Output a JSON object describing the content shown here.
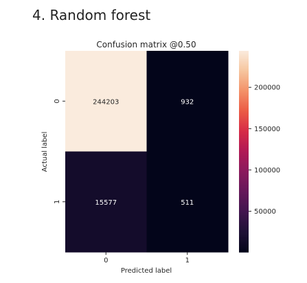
{
  "page": {
    "section_heading": "4. Random forest"
  },
  "chart_data": {
    "type": "heatmap",
    "title": "Confusion matrix @0.50",
    "xlabel": "Predicted label",
    "ylabel": "Actual label",
    "x_categories": [
      "0",
      "1"
    ],
    "y_categories": [
      "0",
      "1"
    ],
    "values": [
      [
        244203,
        932
      ],
      [
        15577,
        511
      ]
    ],
    "cell_label_format": "integer",
    "colorbar": {
      "ticks": [
        50000,
        100000,
        150000,
        200000
      ],
      "tick_labels": [
        "50000",
        "100000",
        "150000",
        "200000"
      ],
      "vmin": 511,
      "vmax": 244203,
      "colormap": "rocket"
    },
    "grid": false,
    "legend": "colorbar-right",
    "colors": {
      "low": "#03051a",
      "high": "#faebdd",
      "text_on_dark": "#ffffff",
      "text_on_light": "#262626"
    }
  }
}
